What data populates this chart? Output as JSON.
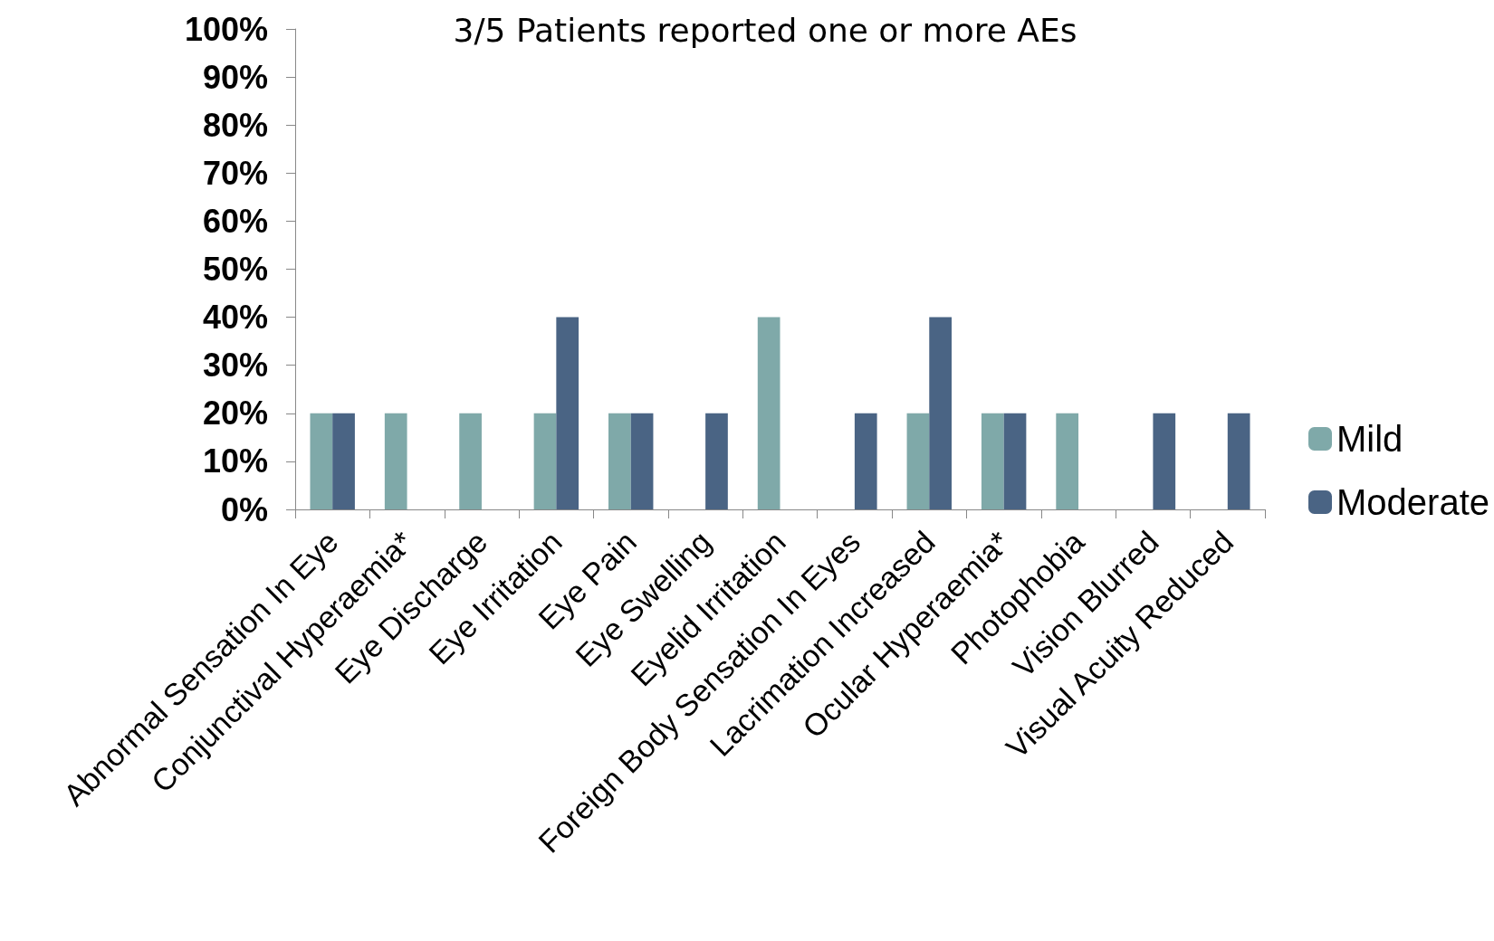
{
  "chart_data": {
    "type": "bar",
    "title": "3/5 Patients reported one or more AEs",
    "categories": [
      "Abnormal Sensation In Eye",
      "Conjunctival Hyperaemia*",
      "Eye Discharge",
      "Eye Irritation",
      "Eye Pain",
      "Eye Swelling",
      "Eyelid Irritation",
      "Foreign Body Sensation In Eyes",
      "Lacrimation Increased",
      "Ocular Hyperaemia*",
      "Photophobia",
      "Vision Blurred",
      "Visual Acuity Reduced"
    ],
    "series": [
      {
        "name": "Mild",
        "color": "#7fa9a9",
        "values": [
          20,
          20,
          20,
          20,
          20,
          0,
          40,
          0,
          20,
          20,
          20,
          0,
          0
        ]
      },
      {
        "name": "Moderate",
        "color": "#4a6484",
        "values": [
          20,
          0,
          0,
          40,
          20,
          20,
          0,
          20,
          40,
          20,
          0,
          20,
          20
        ]
      }
    ],
    "ylim": [
      0,
      100
    ],
    "yticks": [
      {
        "value": 0,
        "label": "0%"
      },
      {
        "value": 10,
        "label": "10%"
      },
      {
        "value": 20,
        "label": "20%"
      },
      {
        "value": 30,
        "label": "30%"
      },
      {
        "value": 40,
        "label": "40%"
      },
      {
        "value": 50,
        "label": "50%"
      },
      {
        "value": 60,
        "label": "60%"
      },
      {
        "value": 70,
        "label": "70%"
      },
      {
        "value": 80,
        "label": "80%"
      },
      {
        "value": 90,
        "label": "90%"
      },
      {
        "value": 100,
        "label": "100%"
      }
    ],
    "grid": false,
    "legend": "right"
  }
}
